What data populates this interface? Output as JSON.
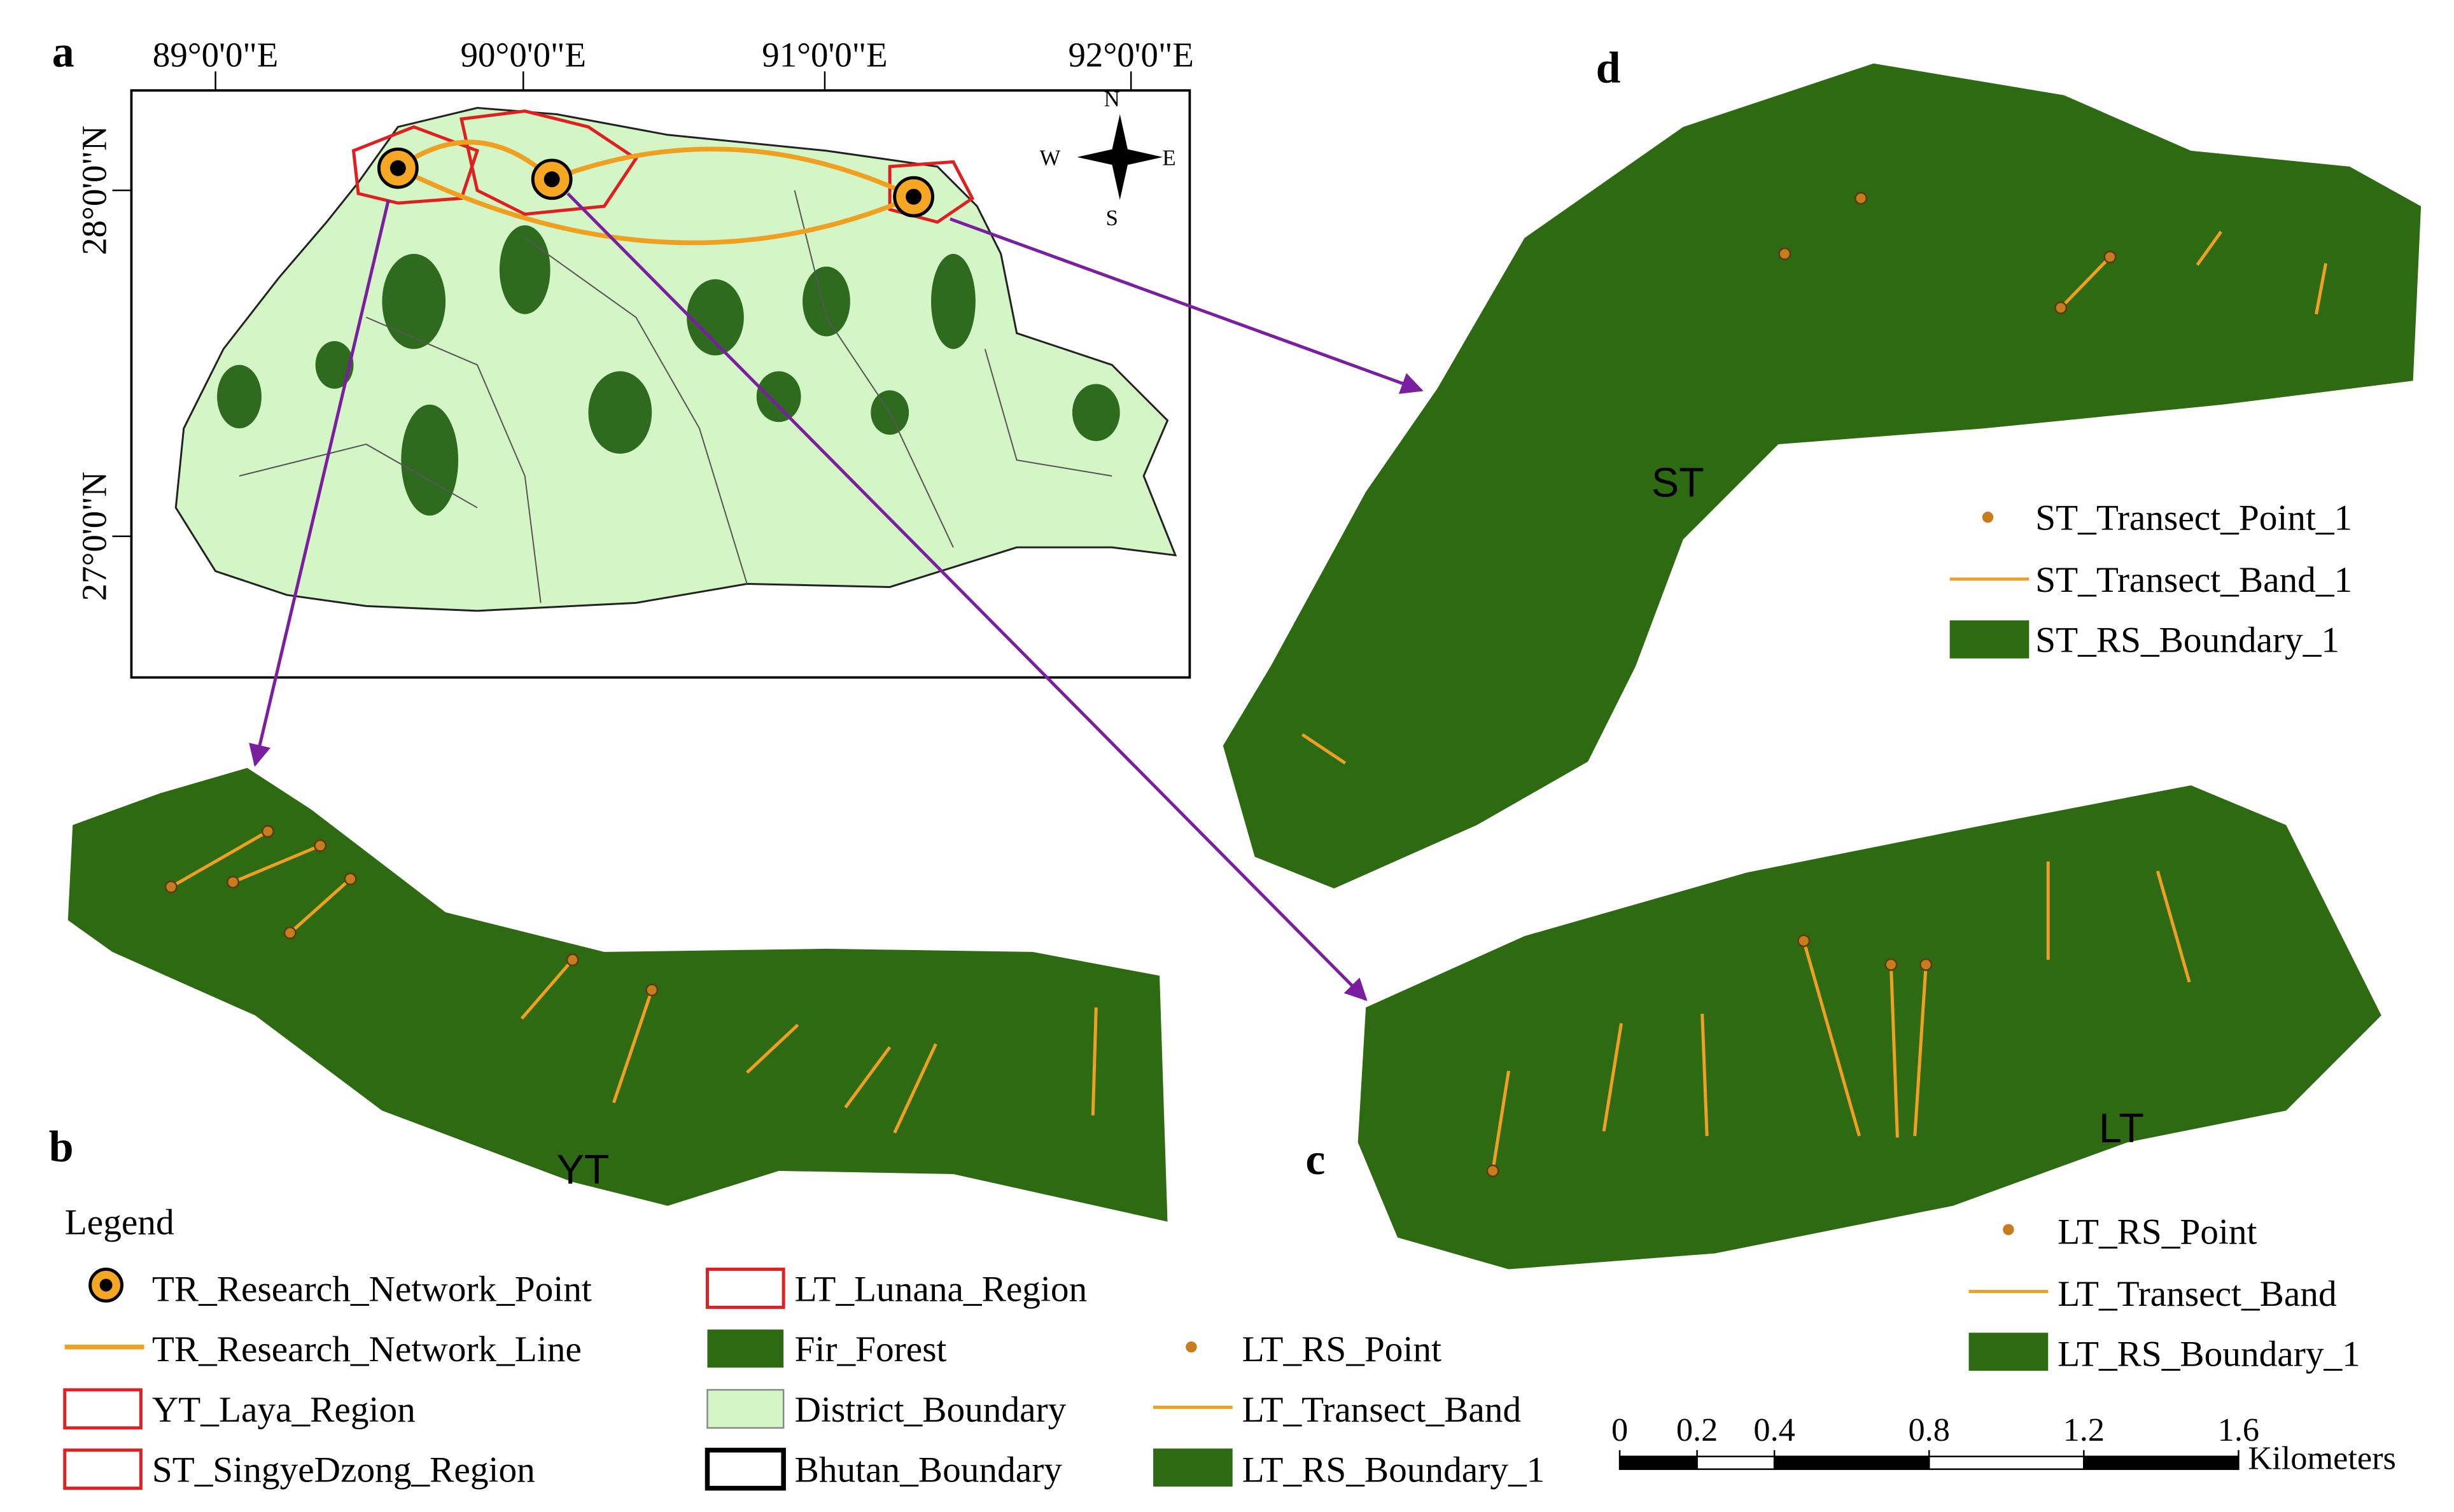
{
  "panel_labels": [
    "a",
    "b",
    "c",
    "d"
  ],
  "map_a": {
    "lon_ticks": [
      "89°0'0\"E",
      "90°0'0\"E",
      "91°0'0\"E",
      "92°0'0\"E"
    ],
    "lat_ticks": [
      "28°0'0\"N",
      "27°0'0\"N"
    ],
    "compass": {
      "n": "N",
      "w": "W",
      "e": "E",
      "s": "S"
    }
  },
  "site_labels": {
    "st": "ST",
    "yt": "YT",
    "lt": "LT"
  },
  "legend": {
    "title": "Legend",
    "items": [
      "TR_Research_Network_Point",
      "TR_Research_Network_Line",
      "YT_Laya_Region",
      "ST_SingyeDzong_Region",
      "LT_Lunana_Region",
      "Fir_Forest",
      "District_Boundary",
      "Bhutan_Boundary",
      "LT_RS_Point",
      "LT_Transect_Band",
      "LT_RS_Boundary_1"
    ]
  },
  "st_legend": [
    "ST_Transect_Point_1",
    "ST_Transect_Band_1",
    "ST_RS_Boundary_1"
  ],
  "lt_legend": [
    "LT_RS_Point",
    "LT_Transect_Band",
    "LT_RS_Boundary_1"
  ],
  "scale_bar": {
    "ticks": [
      0,
      0.2,
      0.4,
      0.8,
      1.2,
      1.6
    ],
    "unit": "Kilometers"
  }
}
